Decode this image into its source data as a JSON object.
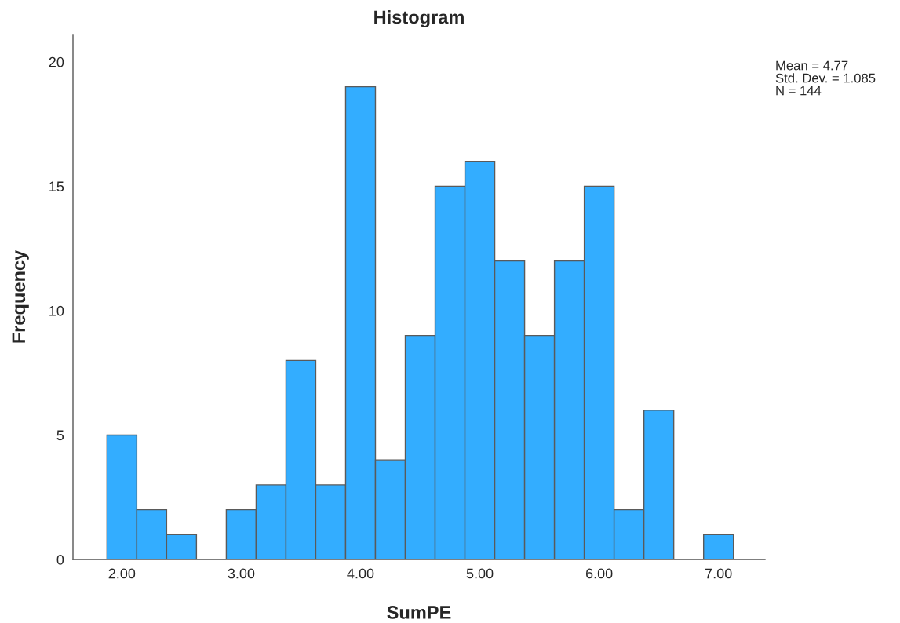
{
  "chart_data": {
    "type": "histogram",
    "title": "Histogram",
    "xlabel": "SumPE",
    "ylabel": "Frequency",
    "bins": [
      1.875,
      2.125,
      2.375,
      2.625,
      2.875,
      3.125,
      3.375,
      3.625,
      3.875,
      4.125,
      4.375,
      4.625,
      4.875,
      5.125,
      5.375,
      5.625,
      5.875,
      6.125,
      6.375,
      6.625,
      6.875,
      7.125
    ],
    "values": [
      5,
      2,
      1,
      0,
      2,
      3,
      8,
      3,
      19,
      4,
      9,
      15,
      16,
      12,
      9,
      12,
      15,
      2,
      6,
      0,
      1
    ],
    "color": "#33adff",
    "xlim": [
      1.59,
      7.39
    ],
    "xticks": [
      {
        "value": 2,
        "label": "2.00"
      },
      {
        "value": 3,
        "label": "3.00"
      },
      {
        "value": 4,
        "label": "4.00"
      },
      {
        "value": 5,
        "label": "5.00"
      },
      {
        "value": 6,
        "label": "6.00"
      },
      {
        "value": 7,
        "label": "7.00"
      }
    ],
    "ylim": [
      0,
      21.1
    ],
    "yticks": [
      0,
      5,
      10,
      15,
      20
    ],
    "grid": false,
    "annotations": [
      "Mean = 4.77",
      "Std. Dev. = 1.085",
      "N = 144"
    ]
  }
}
